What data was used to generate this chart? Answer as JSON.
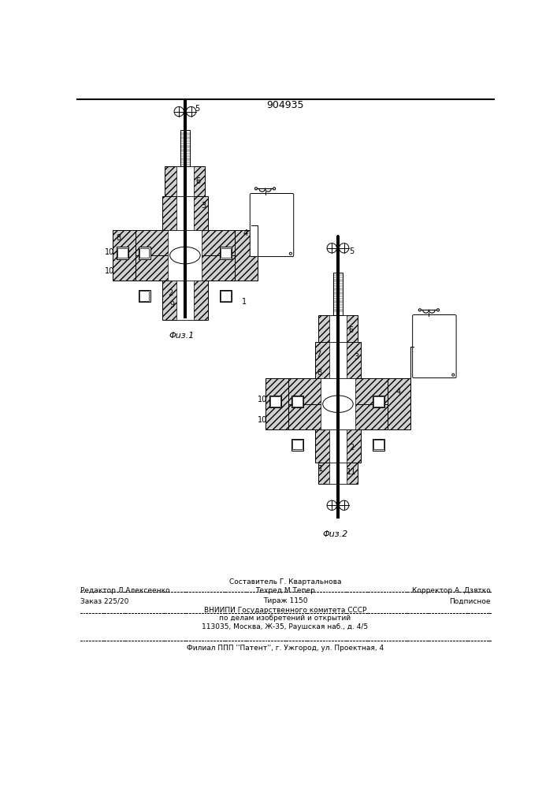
{
  "patent_number": "904935",
  "background_color": "#ffffff",
  "text_color": "#000000",
  "fig_width": 7.07,
  "fig_height": 10.0,
  "dpi": 100,
  "footer": {
    "line1_left": "Редактор Л.Алексеенко",
    "line1_center_top": "Составитель Г. Квартальнова",
    "line1_center_bot": "Техред М.Тепер",
    "line1_right": "Корректор А. Дзятко",
    "line2_left": "Заказ 225/20",
    "line2_center": "Тираж 1150",
    "line2_right": "Подписное",
    "line3": "ВНИИПИ Государственного комитета СССР",
    "line4": "по делам изобретений и открытий",
    "line5": "113035, Москва, Ж-35, Раушская наб., д. 4/5",
    "line6": "Филиал ППП ''Патент'', г. Ужгород, ул. Проектная, 4"
  },
  "fig1_caption": "Φuз.1",
  "fig2_caption": "Φuз.2"
}
